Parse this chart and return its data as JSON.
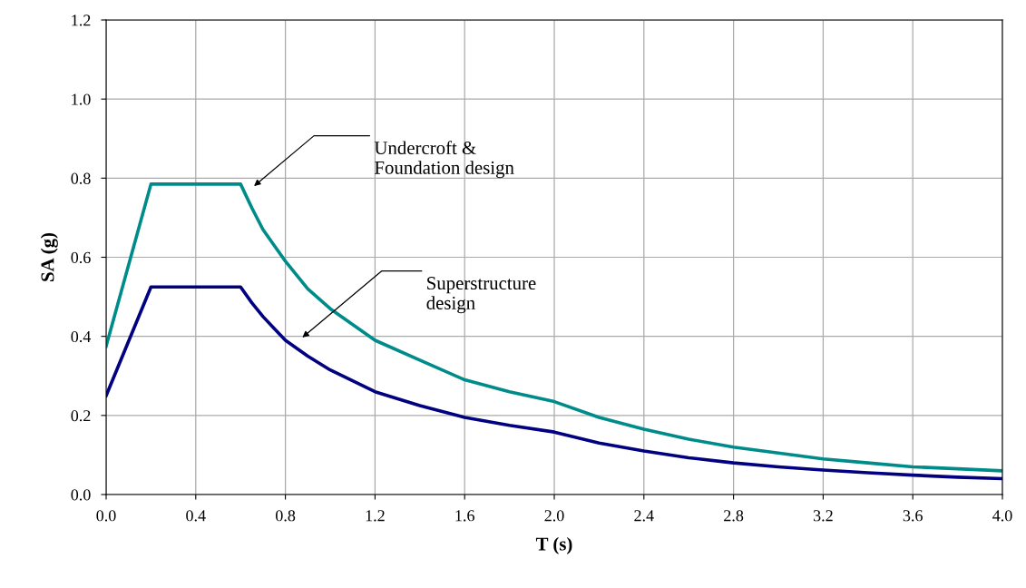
{
  "chart_data": {
    "type": "line",
    "xlabel": "T (s)",
    "ylabel": "SA (g)",
    "xlim": [
      0.0,
      4.0
    ],
    "ylim": [
      0.0,
      1.2
    ],
    "xticks": [
      {
        "value": 0,
        "label": "0.0"
      },
      0.4,
      0.8,
      1.2,
      1.6,
      {
        "value": 2,
        "label": "2.0"
      },
      2.4,
      2.8,
      3.2,
      3.6,
      {
        "value": 4,
        "label": "4.0"
      }
    ],
    "yticks": [
      {
        "value": 0,
        "label": "0.0"
      },
      0.2,
      0.4,
      0.6,
      0.8,
      {
        "value": 1,
        "label": "1.0"
      },
      1.2
    ],
    "grid": true,
    "marker": "none",
    "line_style": "solid",
    "series": [
      {
        "color": "#008b8b",
        "x": [
          0,
          0.2,
          0.6,
          0.65,
          0.7,
          0.75,
          0.8,
          0.9,
          1.0,
          1.2,
          1.4,
          1.6,
          1.8,
          2.0,
          2.2,
          2.4,
          2.6,
          2.8,
          3.0,
          3.2,
          3.4,
          3.6,
          3.8,
          4.0
        ],
        "values": [
          0.375,
          0.785,
          0.785,
          0.725,
          0.67,
          0.63,
          0.59,
          0.52,
          0.47,
          0.39,
          0.34,
          0.29,
          0.26,
          0.235,
          0.195,
          0.165,
          0.14,
          0.12,
          0.105,
          0.09,
          0.08,
          0.07,
          0.065,
          0.06
        ]
      },
      {
        "color": "#000080",
        "x": [
          0,
          0.2,
          0.6,
          0.65,
          0.7,
          0.75,
          0.8,
          0.9,
          1.0,
          1.2,
          1.4,
          1.6,
          1.8,
          2.0,
          2.2,
          2.4,
          2.6,
          2.8,
          3.0,
          3.2,
          3.4,
          3.6,
          3.8,
          4.0
        ],
        "values": [
          0.25,
          0.525,
          0.525,
          0.485,
          0.45,
          0.42,
          0.39,
          0.35,
          0.315,
          0.26,
          0.225,
          0.195,
          0.175,
          0.158,
          0.13,
          0.11,
          0.093,
          0.08,
          0.07,
          0.062,
          0.055,
          0.049,
          0.044,
          0.04
        ]
      }
    ],
    "annotations": [
      "Undercroft &\nFoundation design",
      "Superstructure\ndesign"
    ]
  }
}
